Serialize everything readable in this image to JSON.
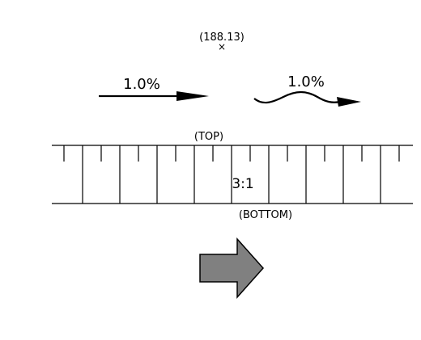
{
  "spot_elevation": {
    "label": "(188.13)",
    "marker": "×"
  },
  "slope_arrow": {
    "label": "1.0%"
  },
  "flow_arrow": {
    "label": "1.0%"
  },
  "slope_symbol": {
    "top_label": "(TOP)",
    "ratio_label": "3:1",
    "bottom_label": "(BOTTOM)"
  },
  "direction_arrow": {
    "fill": "#808080"
  },
  "colors": {
    "line": "#000000",
    "background": "#ffffff"
  }
}
